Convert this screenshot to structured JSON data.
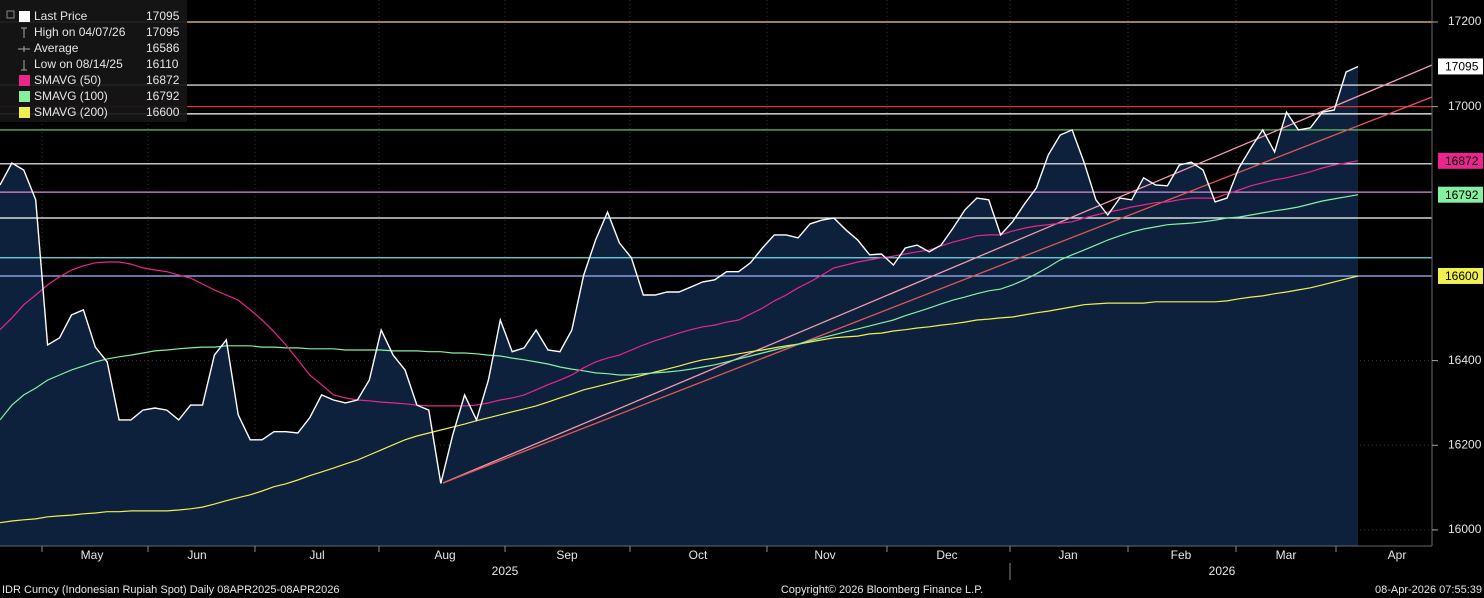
{
  "chart_data": {
    "type": "line",
    "footer_left": "IDR Curncy (Indonesian Rupiah Spot) Daily 08APR2025-08APR2026",
    "footer_center": "Copyright© 2026 Bloomberg Finance L.P.",
    "footer_right": "08-Apr-2026 07:55:39",
    "x_labels": [
      "May",
      "Jun",
      "Jul",
      "Aug",
      "Sep",
      "Oct",
      "Nov",
      "Dec",
      "Jan",
      "Feb",
      "Mar",
      "Apr"
    ],
    "year_labels": [
      "2025",
      "2026"
    ],
    "ylim": [
      15962,
      17252
    ],
    "yticks": [
      16000,
      16200,
      16400,
      17000,
      17200
    ],
    "area_color": "#0d213d",
    "series": [
      {
        "name": "Last Price",
        "color": "#ffffff",
        "values": [
          16815,
          16867,
          16850,
          16780,
          16437,
          16454,
          16508,
          16520,
          16432,
          16397,
          16260,
          16260,
          16283,
          16288,
          16283,
          16260,
          16295,
          16295,
          16413,
          16449,
          16272,
          16213,
          16213,
          16232,
          16232,
          16229,
          16265,
          16319,
          16307,
          16300,
          16307,
          16354,
          16472,
          16413,
          16378,
          16295,
          16283,
          16110,
          16224,
          16319,
          16260,
          16354,
          16496,
          16421,
          16430,
          16472,
          16425,
          16421,
          16472,
          16602,
          16685,
          16751,
          16678,
          16643,
          16555,
          16555,
          16562,
          16562,
          16574,
          16586,
          16591,
          16610,
          16610,
          16631,
          16666,
          16697,
          16697,
          16690,
          16723,
          16732,
          16737,
          16709,
          16685,
          16650,
          16652,
          16626,
          16666,
          16673,
          16657,
          16673,
          16713,
          16756,
          16784,
          16780,
          16697,
          16728,
          16770,
          16808,
          16886,
          16933,
          16945,
          16869,
          16780,
          16744,
          16784,
          16780,
          16832,
          16815,
          16813,
          16862,
          16869,
          16850,
          16775,
          16784,
          16855,
          16902,
          16945,
          16893,
          16987,
          16945,
          16950,
          16987,
          16992,
          17082,
          17095
        ]
      },
      {
        "name": "SMAVG (50)",
        "color": "#e8268c",
        "values": [
          16473,
          16501,
          16532,
          16555,
          16579,
          16598,
          16614,
          16624,
          16631,
          16633,
          16633,
          16628,
          16619,
          16614,
          16610,
          16602,
          16595,
          16581,
          16567,
          16555,
          16543,
          16520,
          16496,
          16468,
          16437,
          16402,
          16366,
          16343,
          16319,
          16312,
          16307,
          16305,
          16302,
          16300,
          16298,
          16295,
          16293,
          16293,
          16293,
          16293,
          16295,
          16300,
          16307,
          16312,
          16319,
          16331,
          16343,
          16354,
          16366,
          16383,
          16397,
          16406,
          16413,
          16425,
          16437,
          16447,
          16456,
          16465,
          16473,
          16480,
          16484,
          16491,
          16496,
          16510,
          16524,
          16541,
          16555,
          16572,
          16586,
          16602,
          16619,
          16626,
          16633,
          16638,
          16643,
          16647,
          16652,
          16657,
          16661,
          16671,
          16680,
          16687,
          16695,
          16697,
          16697,
          16706,
          16713,
          16718,
          16721,
          16725,
          16728,
          16737,
          16744,
          16751,
          16756,
          16763,
          16768,
          16773,
          16775,
          16780,
          16784,
          16784,
          16784,
          16794,
          16803,
          16813,
          16820,
          16827,
          16832,
          16839,
          16846,
          16855,
          16862,
          16867,
          16872
        ]
      },
      {
        "name": "SMAVG (100)",
        "color": "#86f0a0",
        "values": [
          16260,
          16295,
          16319,
          16335,
          16354,
          16366,
          16378,
          16387,
          16397,
          16404,
          16409,
          16413,
          16418,
          16423,
          16425,
          16428,
          16430,
          16432,
          16432,
          16435,
          16435,
          16435,
          16432,
          16432,
          16430,
          16430,
          16428,
          16428,
          16428,
          16425,
          16425,
          16425,
          16425,
          16423,
          16423,
          16423,
          16421,
          16421,
          16418,
          16418,
          16416,
          16413,
          16411,
          16406,
          16402,
          16397,
          16392,
          16385,
          16380,
          16376,
          16371,
          16369,
          16366,
          16366,
          16369,
          16371,
          16373,
          16376,
          16380,
          16385,
          16390,
          16397,
          16404,
          16411,
          16418,
          16425,
          16432,
          16439,
          16447,
          16454,
          16461,
          16468,
          16475,
          16482,
          16489,
          16496,
          16506,
          16515,
          16524,
          16534,
          16543,
          16550,
          16558,
          16565,
          16569,
          16579,
          16591,
          16605,
          16621,
          16638,
          16650,
          16661,
          16673,
          16685,
          16695,
          16704,
          16711,
          16716,
          16721,
          16723,
          16725,
          16728,
          16732,
          16737,
          16739,
          16744,
          16749,
          16754,
          16758,
          16763,
          16770,
          16777,
          16782,
          16787,
          16792
        ]
      },
      {
        "name": "SMAVG (200)",
        "color": "#f0f050",
        "values": [
          16017,
          16021,
          16024,
          16026,
          16031,
          16033,
          16035,
          16038,
          16040,
          16043,
          16043,
          16045,
          16045,
          16045,
          16045,
          16047,
          16050,
          16054,
          16061,
          16069,
          16076,
          16083,
          16092,
          16102,
          16109,
          16118,
          16128,
          16137,
          16146,
          16156,
          16165,
          16177,
          16189,
          16201,
          16213,
          16222,
          16229,
          16236,
          16243,
          16250,
          16258,
          16265,
          16272,
          16279,
          16286,
          16293,
          16302,
          16312,
          16321,
          16331,
          16338,
          16345,
          16352,
          16359,
          16366,
          16373,
          16380,
          16387,
          16395,
          16402,
          16406,
          16411,
          16416,
          16421,
          16425,
          16430,
          16435,
          16439,
          16444,
          16449,
          16454,
          16456,
          16458,
          16463,
          16465,
          16470,
          16473,
          16477,
          16480,
          16484,
          16487,
          16491,
          16496,
          16498,
          16501,
          16503,
          16508,
          16513,
          16517,
          16522,
          16527,
          16532,
          16534,
          16536,
          16536,
          16536,
          16536,
          16539,
          16539,
          16539,
          16539,
          16539,
          16539,
          16541,
          16546,
          16550,
          16553,
          16558,
          16562,
          16567,
          16572,
          16579,
          16586,
          16593,
          16600
        ]
      }
    ],
    "stats": [
      {
        "label": "High on 04/07/26",
        "value": 17095
      },
      {
        "label": "Average",
        "value": 16586
      },
      {
        "label": "Low on 08/14/25",
        "value": 16110
      }
    ],
    "reference_lines": [
      {
        "value": 17200,
        "color": "#f5c890"
      },
      {
        "value": 17051,
        "color": "#ffffff"
      },
      {
        "value": 17000,
        "color": "#e03030"
      },
      {
        "value": 16983,
        "color": "#ffffff"
      },
      {
        "value": 16945,
        "color": "#6cd86c"
      },
      {
        "value": 16865,
        "color": "#ffffff"
      },
      {
        "value": 16798,
        "color": "#d890d8"
      },
      {
        "value": 16737,
        "color": "#ffffff"
      },
      {
        "value": 16643,
        "color": "#70e0ea"
      },
      {
        "value": 16600,
        "color": "#a0b8ff"
      }
    ]
  }
}
